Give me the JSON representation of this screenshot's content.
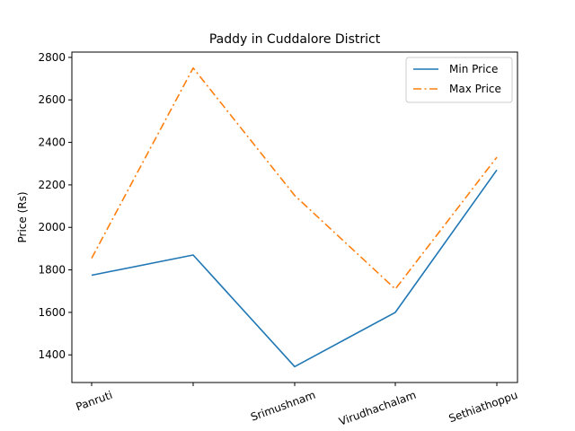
{
  "chart_data": {
    "type": "line",
    "title": "Paddy in Cuddalore District",
    "xlabel": "",
    "ylabel": "Price (Rs)",
    "categories": [
      "Panruti",
      "",
      "Srimushnam",
      "Virudhachalam",
      "Sethiathoppu"
    ],
    "series": [
      {
        "name": "Min Price",
        "color": "#1f77b4",
        "style": "solid",
        "values": [
          1775,
          1870,
          1345,
          1600,
          2270
        ]
      },
      {
        "name": "Max Price",
        "color": "#ff7f0e",
        "style": "dashdot",
        "values": [
          1855,
          2750,
          2150,
          1710,
          2330
        ]
      }
    ],
    "yticks": [
      1400,
      1600,
      1800,
      2000,
      2200,
      2400,
      2600,
      2800
    ],
    "ylim": [
      1270,
      2825
    ],
    "grid": false,
    "legend": "top-right"
  }
}
